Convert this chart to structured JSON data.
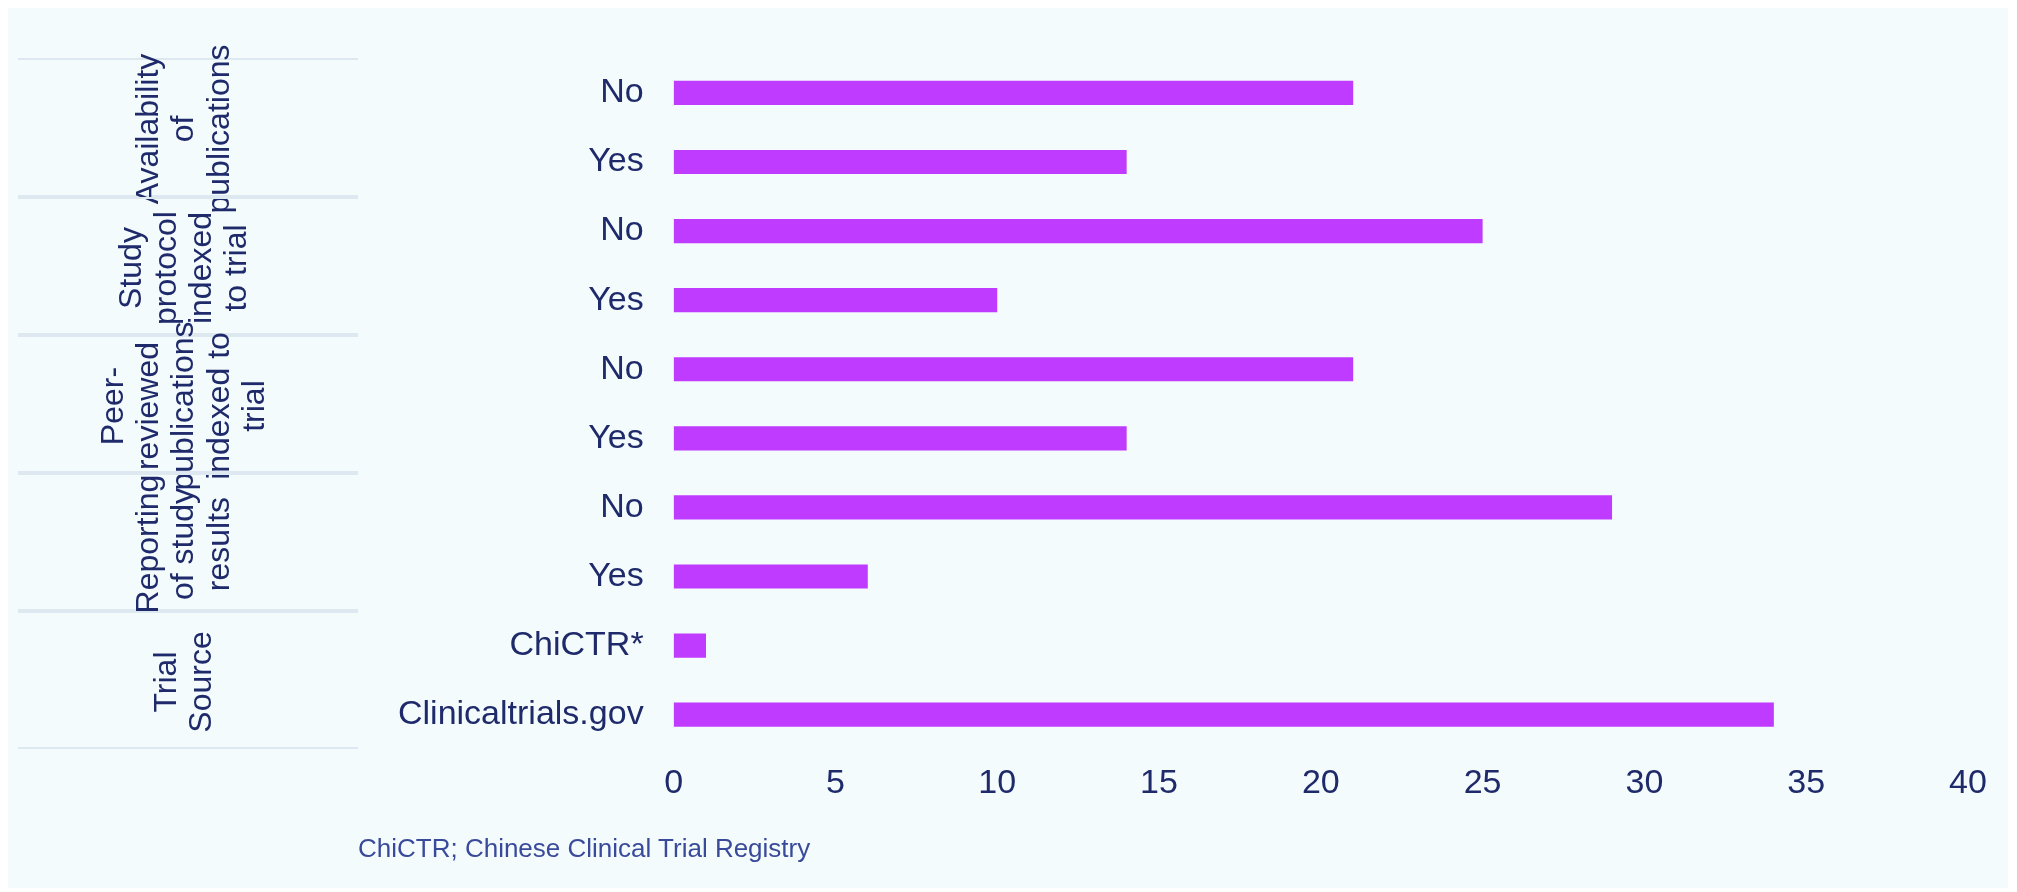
{
  "chart_data": {
    "type": "bar",
    "orientation": "horizontal",
    "categories": [
      "No",
      "Yes",
      "No",
      "Yes",
      "No",
      "Yes",
      "No",
      "Yes",
      "ChiCTR*",
      "Clinicaltrials.gov"
    ],
    "values": [
      21,
      14,
      25,
      10,
      21,
      14,
      29,
      6,
      1,
      34
    ],
    "color": "#bf3bff",
    "xlim": [
      0,
      40
    ],
    "xticks": [
      0,
      5,
      10,
      15,
      20,
      25,
      30,
      35,
      40
    ],
    "grid": false,
    "legend": false,
    "annotations": [
      "Availability of publications",
      "Study protocol indexed to trial",
      "Peer-reviewed publications indexed to trial",
      "Reporting of study results",
      "Trial Source",
      "ChiCTR; Chinese Clinical Trial Registry"
    ]
  }
}
